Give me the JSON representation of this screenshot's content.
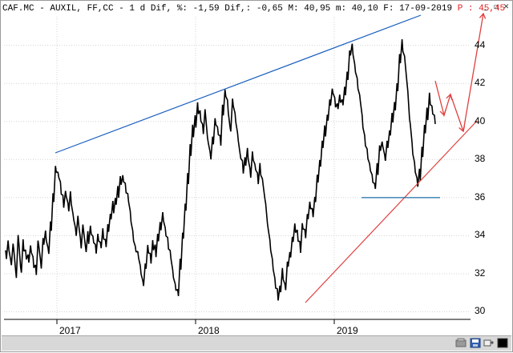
{
  "header": {
    "text": "CAF.MC - AUXIL, FF,CC -  1 d Dif, %: -1,59 Dif,: -0,65 M: 40,95 m: 40,10 F: 17-09-2019",
    "price_prefix": "P :",
    "price_value": "45,45"
  },
  "window_buttons": {
    "minimize": "_",
    "restore": "▫",
    "close": "✕"
  },
  "colors": {
    "price_line": "#000000",
    "resistance_line": "#1a5fbf",
    "support_line": "#e04040",
    "horizontal_line": "#1a6ea8",
    "forecast_arrows": "#e04040",
    "header_price": "#e02020"
  },
  "chart_data": {
    "type": "line",
    "title": "",
    "xlabel": "",
    "ylabel": "",
    "ylim": [
      30,
      45
    ],
    "y_ticks": [
      "44",
      "42",
      "40",
      "38",
      "36",
      "34",
      "32",
      "30"
    ],
    "x_tick_labels": [
      "2017",
      "2018",
      "2019"
    ],
    "grid": true,
    "series": [
      {
        "values": [
          33.0,
          33.5,
          32.6,
          33.4,
          32.0,
          33.8,
          32.2,
          33.5,
          33.0,
          32.8,
          33.3,
          32.6,
          32.2,
          33.6,
          32.5,
          33.7,
          34.0,
          33.2,
          34.5,
          36.0,
          37.5,
          37.2,
          36.5,
          35.8,
          36.2,
          35.5,
          36.0,
          35.0,
          34.2,
          34.8,
          33.6,
          34.4,
          33.3,
          33.9,
          34.3,
          33.8,
          33.3,
          33.9,
          33.5,
          34.1,
          33.6,
          34.4,
          35.0,
          35.5,
          35.8,
          36.3,
          36.9,
          37.0,
          36.5,
          36.0,
          35.0,
          34.0,
          33.3,
          33.0,
          32.2,
          31.5,
          32.4,
          33.3,
          32.8,
          33.5,
          33.2,
          33.9,
          34.5,
          35.0,
          34.2,
          33.6,
          33.0,
          32.0,
          31.3,
          31.0,
          32.5,
          34.0,
          35.5,
          37.0,
          38.5,
          39.5,
          40.0,
          40.7,
          40.3,
          39.6,
          40.4,
          39.0,
          38.2,
          39.0,
          40.0,
          39.5,
          39.0,
          40.6,
          41.5,
          40.8,
          39.6,
          41.0,
          40.2,
          39.2,
          38.2,
          37.6,
          37.9,
          38.3,
          37.3,
          38.2,
          37.6,
          37.0,
          37.5,
          36.8,
          35.8,
          34.5,
          33.5,
          32.5,
          31.5,
          30.9,
          31.2,
          32.0,
          31.3,
          32.5,
          33.0,
          33.8,
          34.4,
          34.0,
          33.4,
          34.5,
          34.1,
          35.0,
          35.6,
          35.2,
          35.9,
          37.0,
          37.8,
          38.8,
          39.5,
          40.2,
          41.0,
          41.6,
          41.0,
          40.8,
          41.2,
          41.0,
          41.6,
          42.4,
          43.6,
          43.8,
          42.8,
          42.0,
          41.2,
          40.0,
          39.0,
          38.3,
          37.6,
          37.0,
          36.6,
          37.5,
          38.6,
          38.8,
          38.1,
          38.8,
          39.4,
          40.2,
          40.8,
          41.8,
          43.3,
          44.0,
          43.2,
          41.8,
          40.0,
          38.6,
          37.6,
          36.8,
          37.2,
          38.4,
          39.6,
          40.4,
          41.2,
          40.6,
          40.1
        ]
      }
    ],
    "annotations": [
      "resistance trendline",
      "support trendline",
      "horizontal support at 36",
      "projected zigzag path to 45,45"
    ]
  },
  "toolbar": {
    "buttons": [
      "chart-settings",
      "save",
      "pin",
      "color-swatch"
    ]
  }
}
